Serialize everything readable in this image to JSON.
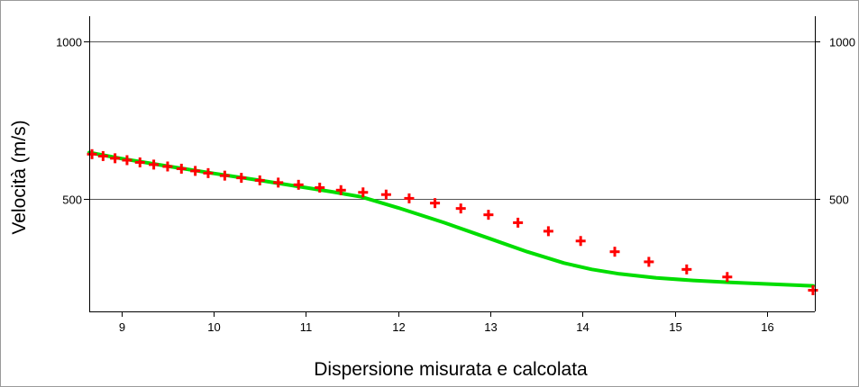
{
  "chart_data": {
    "type": "line",
    "title": "",
    "xlabel": "Dispersione misurata e calcolata",
    "ylabel": "Velocità (m/s)",
    "xlim": [
      8.65,
      16.52
    ],
    "ylim": [
      145,
      1080
    ],
    "x_ticks": [
      9,
      10,
      11,
      12,
      13,
      14,
      15,
      16
    ],
    "y_ticks": [
      500,
      1000
    ],
    "x_tick_labels": [
      "9",
      "10",
      "11",
      "12",
      "13",
      "14",
      "15",
      "16"
    ],
    "y_tick_labels_left": [
      "500",
      "1000"
    ],
    "y_tick_labels_right": [
      "500",
      "1000"
    ],
    "grid": "horizontal",
    "legend": "none",
    "series": [
      {
        "kind": "scatter",
        "marker": "plus",
        "color": "#ff0000",
        "x": [
          8.68,
          8.8,
          8.93,
          9.06,
          9.2,
          9.35,
          9.5,
          9.65,
          9.8,
          9.94,
          10.12,
          10.3,
          10.5,
          10.7,
          10.92,
          11.15,
          11.38,
          11.62,
          11.87,
          12.12,
          12.4,
          12.68,
          12.98,
          13.3,
          13.63,
          13.98,
          14.35,
          14.72,
          15.13,
          15.57,
          16.5
        ],
        "y": [
          643,
          637,
          630,
          624,
          617,
          610,
          604,
          597,
          590,
          583,
          575,
          568,
          560,
          553,
          546,
          537,
          529,
          522,
          515,
          503,
          488,
          471,
          451,
          426,
          399,
          368,
          334,
          302,
          278,
          254,
          212
        ]
      },
      {
        "kind": "line",
        "color": "#00dd00",
        "x": [
          8.65,
          9.0,
          9.5,
          10.0,
          10.5,
          11.0,
          11.3,
          11.6,
          12.0,
          12.5,
          13.0,
          13.4,
          13.8,
          14.1,
          14.4,
          14.8,
          15.2,
          15.6,
          16.0,
          16.5
        ],
        "y": [
          648,
          629,
          605,
          582,
          560,
          537,
          523,
          508,
          473,
          426,
          375,
          334,
          298,
          278,
          264,
          251,
          243,
          237,
          232,
          226
        ]
      }
    ]
  }
}
